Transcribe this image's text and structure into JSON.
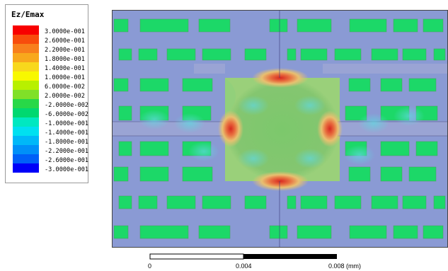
{
  "legend": {
    "title": "Ez/Emax",
    "entries": [
      {
        "label": "3.0000e-001",
        "color": "#f80000"
      },
      {
        "label": "2.6000e-001",
        "color": "#f84c0c"
      },
      {
        "label": "2.2000e-001",
        "color": "#f87f1c"
      },
      {
        "label": "1.8000e-001",
        "color": "#f8a81c"
      },
      {
        "label": "1.4000e-001",
        "color": "#f8d81c"
      },
      {
        "label": "1.0000e-001",
        "color": "#f8f800"
      },
      {
        "label": "6.0000e-002",
        "color": "#b8f000"
      },
      {
        "label": "2.0000e-002",
        "color": "#80e028"
      },
      {
        "label": "-2.0000e-002",
        "color": "#28d848"
      },
      {
        "label": "-6.0000e-002",
        "color": "#00d870"
      },
      {
        "label": "-1.0000e-001",
        "color": "#00e8c0"
      },
      {
        "label": "-1.4000e-001",
        "color": "#00e0f0"
      },
      {
        "label": "-1.8000e-001",
        "color": "#00b8f8"
      },
      {
        "label": "-2.2000e-001",
        "color": "#0090f8"
      },
      {
        "label": "-2.6000e-001",
        "color": "#0060f8"
      },
      {
        "label": "-3.0000e-001",
        "color": "#0000f8"
      }
    ]
  },
  "plot": {
    "background_color": "#8a9ad4",
    "field_color": "#72c874",
    "pad_color": "#1cd868",
    "hot_color": "#e83020"
  },
  "scale": {
    "labels": [
      "0",
      "0.004",
      "0.008 (mm)"
    ]
  }
}
